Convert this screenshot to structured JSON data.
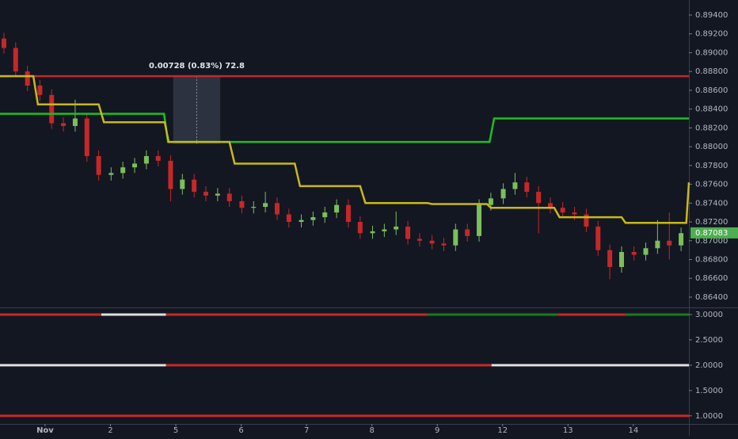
{
  "chart_data": [
    {
      "type": "candlestick",
      "xlim": [
        -0.69,
        9.85
      ],
      "ylim": [
        0.8629,
        0.8956
      ],
      "yticks": [
        {
          "value": 0.864,
          "label": "0.86400"
        },
        {
          "value": 0.866,
          "label": "0.86600"
        },
        {
          "value": 0.868,
          "label": "0.86800"
        },
        {
          "value": 0.87,
          "label": "0.87000"
        },
        {
          "value": 0.872,
          "label": "0.87200"
        },
        {
          "value": 0.874,
          "label": "0.87400"
        },
        {
          "value": 0.876,
          "label": "0.87600"
        },
        {
          "value": 0.878,
          "label": "0.87800"
        },
        {
          "value": 0.88,
          "label": "0.88000"
        },
        {
          "value": 0.882,
          "label": "0.88200"
        },
        {
          "value": 0.884,
          "label": "0.88400"
        },
        {
          "value": 0.886,
          "label": "0.88600"
        },
        {
          "value": 0.888,
          "label": "0.88800"
        },
        {
          "value": 0.89,
          "label": "0.89000"
        },
        {
          "value": 0.892,
          "label": "0.89200"
        },
        {
          "value": 0.894,
          "label": "0.89400"
        }
      ],
      "up_color": "#7cbf5a",
      "down_color": "#c62828",
      "x": [
        -0.63,
        -0.45,
        -0.27,
        -0.08,
        0.1,
        0.28,
        0.46,
        0.64,
        0.82,
        1.01,
        1.19,
        1.37,
        1.55,
        1.73,
        1.92,
        2.1,
        2.28,
        2.46,
        2.64,
        2.82,
        3.01,
        3.19,
        3.37,
        3.55,
        3.73,
        3.92,
        4.1,
        4.28,
        4.46,
        4.64,
        4.82,
        5.01,
        5.19,
        5.37,
        5.55,
        5.73,
        5.92,
        6.1,
        6.28,
        6.46,
        6.64,
        6.82,
        7.01,
        7.19,
        7.37,
        7.55,
        7.73,
        7.92,
        8.1,
        8.28,
        8.46,
        8.64,
        8.82,
        9.01,
        9.19,
        9.37,
        9.55,
        9.73
      ],
      "open": [
        0.8915,
        0.8905,
        0.888,
        0.8865,
        0.8855,
        0.8825,
        0.8822,
        0.883,
        0.879,
        0.877,
        0.8772,
        0.8778,
        0.8782,
        0.879,
        0.8785,
        0.8755,
        0.8765,
        0.8752,
        0.8748,
        0.875,
        0.8742,
        0.8735,
        0.8736,
        0.874,
        0.8728,
        0.872,
        0.8722,
        0.8725,
        0.873,
        0.8738,
        0.872,
        0.8708,
        0.871,
        0.8712,
        0.8715,
        0.8702,
        0.87,
        0.8697,
        0.8695,
        0.8712,
        0.8705,
        0.8738,
        0.8745,
        0.8755,
        0.8762,
        0.8752,
        0.874,
        0.8735,
        0.873,
        0.8728,
        0.8715,
        0.869,
        0.8672,
        0.8688,
        0.8685,
        0.8692,
        0.87,
        0.8695
      ],
      "high": [
        0.8921,
        0.8911,
        0.8886,
        0.8871,
        0.8861,
        0.8831,
        0.885,
        0.8836,
        0.8796,
        0.8778,
        0.8784,
        0.8788,
        0.8796,
        0.8796,
        0.8791,
        0.8771,
        0.8771,
        0.8758,
        0.8756,
        0.8756,
        0.8748,
        0.8742,
        0.8752,
        0.8746,
        0.8734,
        0.8728,
        0.8731,
        0.8736,
        0.8744,
        0.8744,
        0.8726,
        0.8716,
        0.8718,
        0.8731,
        0.8721,
        0.8708,
        0.8706,
        0.8703,
        0.8718,
        0.8718,
        0.8744,
        0.8751,
        0.8761,
        0.8772,
        0.8768,
        0.8758,
        0.8746,
        0.8741,
        0.8736,
        0.8734,
        0.8721,
        0.8696,
        0.8694,
        0.8694,
        0.8698,
        0.8722,
        0.873,
        0.8714
      ],
      "low": [
        0.8899,
        0.8874,
        0.8859,
        0.8849,
        0.8819,
        0.8816,
        0.8816,
        0.8784,
        0.8764,
        0.8764,
        0.8766,
        0.8772,
        0.8776,
        0.8779,
        0.8742,
        0.8749,
        0.8746,
        0.8742,
        0.8742,
        0.8736,
        0.8729,
        0.8729,
        0.873,
        0.8722,
        0.8714,
        0.8714,
        0.8716,
        0.8719,
        0.8724,
        0.8714,
        0.8702,
        0.8702,
        0.8704,
        0.8706,
        0.8696,
        0.8694,
        0.8691,
        0.8689,
        0.8689,
        0.8699,
        0.8699,
        0.8732,
        0.8739,
        0.8749,
        0.8746,
        0.8708,
        0.8729,
        0.8724,
        0.8722,
        0.8709,
        0.8684,
        0.8659,
        0.8666,
        0.8679,
        0.8679,
        0.8686,
        0.868,
        0.8689
      ],
      "close": [
        0.8905,
        0.888,
        0.8865,
        0.8855,
        0.8825,
        0.8822,
        0.883,
        0.879,
        0.877,
        0.8772,
        0.8778,
        0.8782,
        0.879,
        0.8785,
        0.8755,
        0.8765,
        0.8752,
        0.8748,
        0.875,
        0.8742,
        0.8735,
        0.8736,
        0.874,
        0.8728,
        0.872,
        0.8722,
        0.8725,
        0.873,
        0.8738,
        0.872,
        0.8708,
        0.871,
        0.8712,
        0.8715,
        0.8702,
        0.87,
        0.8697,
        0.8695,
        0.8712,
        0.8705,
        0.8738,
        0.8745,
        0.8755,
        0.8762,
        0.8752,
        0.874,
        0.8735,
        0.873,
        0.8728,
        0.8715,
        0.869,
        0.8672,
        0.8688,
        0.8685,
        0.8692,
        0.87,
        0.8695,
        0.8708
      ],
      "lines": [
        {
          "color": "#c62828",
          "x": [
            -0.69,
            9.85
          ],
          "values": [
            0.8875,
            0.8875
          ]
        },
        {
          "color": "#1fbf1f",
          "x": [
            -0.69,
            1.82,
            1.88,
            6.8,
            6.87,
            9.85
          ],
          "values": [
            0.8835,
            0.8835,
            0.8805,
            0.8805,
            0.883,
            0.883
          ]
        },
        {
          "color": "#c9b81a",
          "x": [
            -0.69,
            -0.18,
            -0.11,
            0.82,
            0.9,
            1.83,
            1.89,
            2.82,
            2.9,
            3.82,
            3.9,
            4.82,
            4.9,
            5.85,
            5.92,
            6.76,
            6.82,
            7.79,
            7.87,
            8.82,
            8.88,
            9.81,
            9.85
          ],
          "values": [
            0.8875,
            0.8875,
            0.8845,
            0.8845,
            0.8826,
            0.8826,
            0.8805,
            0.8805,
            0.8782,
            0.8782,
            0.8758,
            0.8758,
            0.874,
            0.874,
            0.8739,
            0.8739,
            0.8735,
            0.8735,
            0.8725,
            0.8725,
            0.8719,
            0.8719,
            0.8762
          ]
        }
      ],
      "measure": {
        "label": "0.00728 (0.83%) 72.8",
        "xrange": [
          1.96,
          2.68
        ],
        "yrange": [
          0.8803,
          0.8875
        ]
      },
      "last_price": {
        "value": 0.87083,
        "label": "0.87083",
        "color": "#4caf50"
      }
    },
    {
      "type": "segments",
      "xlim": [
        -0.69,
        9.85
      ],
      "ylim": [
        0.84,
        3.14
      ],
      "yticks": [
        {
          "value": 1,
          "label": "1.0000"
        },
        {
          "value": 1.5,
          "label": "1.5000"
        },
        {
          "value": 2,
          "label": "2.0000"
        },
        {
          "value": 2.5,
          "label": "2.5000"
        },
        {
          "value": 3,
          "label": "3.0000"
        }
      ],
      "xticks": [
        {
          "value": 0,
          "label": "Nov"
        },
        {
          "value": 1,
          "label": "2"
        },
        {
          "value": 2,
          "label": "5"
        },
        {
          "value": 3,
          "label": "6"
        },
        {
          "value": 4,
          "label": "7"
        },
        {
          "value": 5,
          "label": "8"
        },
        {
          "value": 6,
          "label": "9"
        },
        {
          "value": 7,
          "label": "12"
        },
        {
          "value": 8,
          "label": "13"
        },
        {
          "value": 9,
          "label": "14"
        }
      ],
      "series": [
        {
          "value": 3,
          "segments": [
            {
              "from": -0.69,
              "to": 0.86,
              "color": "#c62828"
            },
            {
              "from": 0.86,
              "to": 1.85,
              "color": "#e0e0e0"
            },
            {
              "from": 1.85,
              "to": 5.85,
              "color": "#c62828"
            },
            {
              "from": 5.85,
              "to": 7.85,
              "color": "#1b7a1b"
            },
            {
              "from": 7.85,
              "to": 8.88,
              "color": "#c62828"
            },
            {
              "from": 8.88,
              "to": 9.85,
              "color": "#1b7a1b"
            }
          ]
        },
        {
          "value": 2,
          "segments": [
            {
              "from": -0.69,
              "to": 1.85,
              "color": "#e0e0e0"
            },
            {
              "from": 1.85,
              "to": 6.83,
              "color": "#c62828"
            },
            {
              "from": 6.83,
              "to": 9.85,
              "color": "#e0e0e0"
            }
          ]
        },
        {
          "value": 1,
          "segments": [
            {
              "from": -0.69,
              "to": 9.85,
              "color": "#c62828"
            }
          ]
        }
      ]
    }
  ]
}
